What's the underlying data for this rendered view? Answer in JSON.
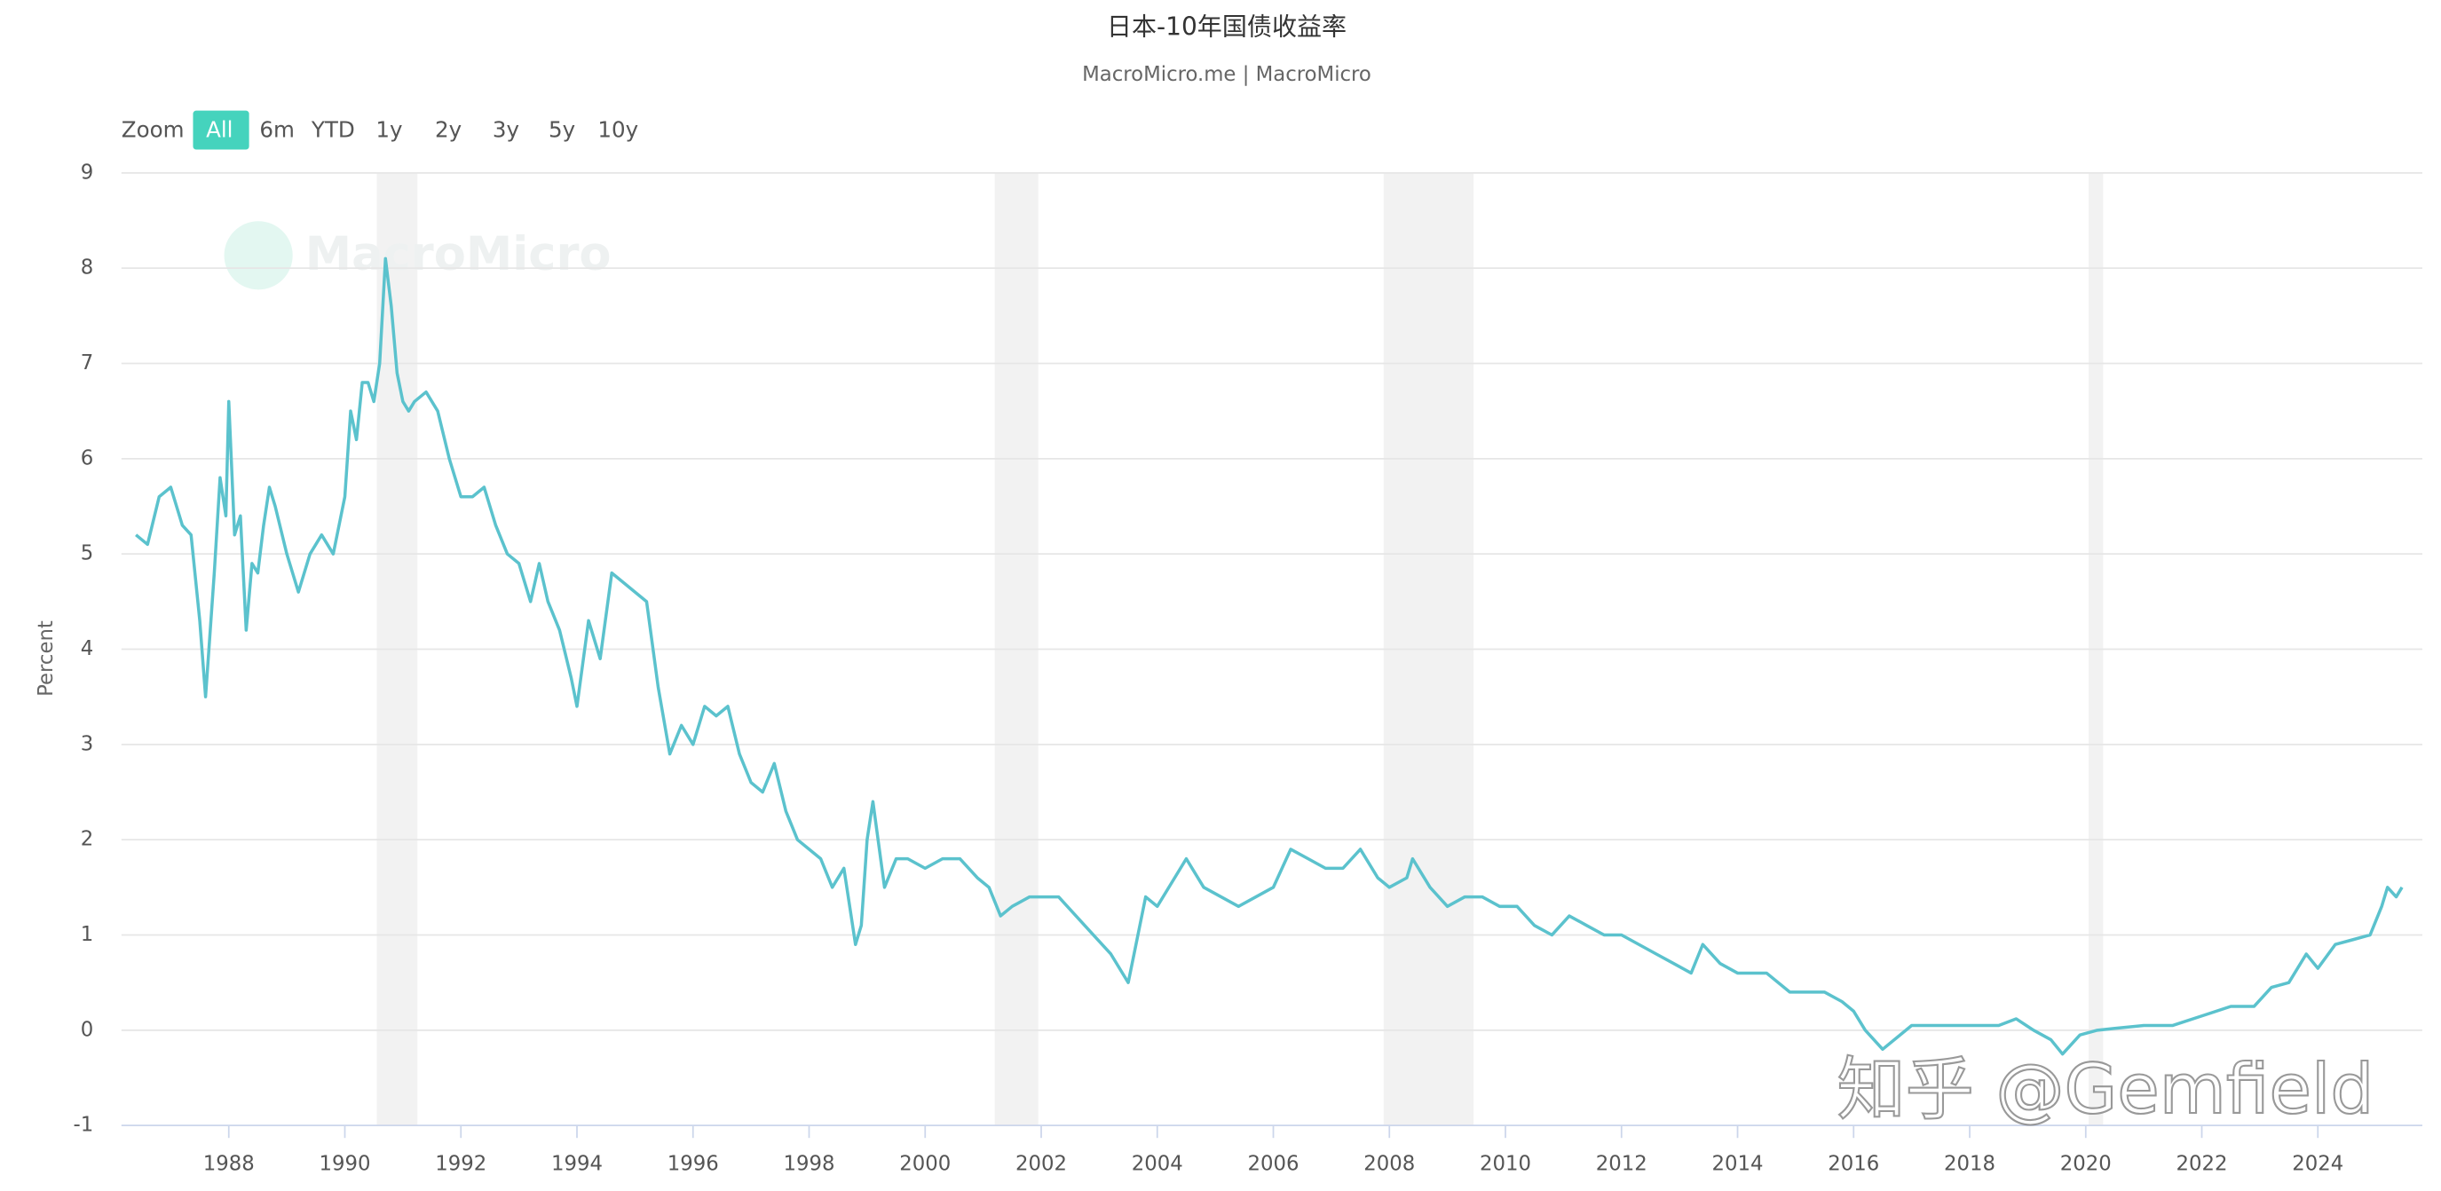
{
  "chart_data": {
    "type": "line",
    "title": "日本-10年国债收益率",
    "subtitle": "MacroMicro.me | MacroMicro",
    "zoom_label": "Zoom",
    "zoom_buttons": [
      "All",
      "6m",
      "YTD",
      "1y",
      "2y",
      "3y",
      "5y",
      "10y"
    ],
    "active_zoom": "All",
    "y_label": "Percent",
    "watermarks": [
      "MacroMicro",
      "知乎 @Gemfield"
    ],
    "xlim": [
      1986.15,
      2025.8
    ],
    "xticks": [
      1988,
      1990,
      1992,
      1994,
      1996,
      1998,
      2000,
      2002,
      2004,
      2006,
      2008,
      2010,
      2012,
      2014,
      2016,
      2018,
      2020,
      2022,
      2024
    ],
    "ylim": [
      -1,
      9
    ],
    "yticks": [
      -1,
      0,
      1,
      2,
      3,
      4,
      5,
      6,
      7,
      8,
      9
    ],
    "grid": true,
    "band_color": "#f2f2f2",
    "recession_bands": [
      [
        1990.55,
        1991.25
      ],
      [
        2001.2,
        2001.95
      ],
      [
        2007.9,
        2009.45
      ],
      [
        2020.05,
        2020.3
      ]
    ],
    "x": [
      1986.4,
      1986.6,
      1986.8,
      1987.0,
      1987.2,
      1987.35,
      1987.5,
      1987.6,
      1987.75,
      1987.85,
      1987.95,
      1988.0,
      1988.1,
      1988.2,
      1988.3,
      1988.4,
      1988.5,
      1988.6,
      1988.7,
      1988.8,
      1989.0,
      1989.2,
      1989.4,
      1989.6,
      1989.8,
      1990.0,
      1990.1,
      1990.2,
      1990.3,
      1990.4,
      1990.5,
      1990.6,
      1990.7,
      1990.8,
      1990.9,
      1991.0,
      1991.1,
      1991.2,
      1991.4,
      1991.6,
      1991.8,
      1992.0,
      1992.2,
      1992.4,
      1992.6,
      1992.8,
      1993.0,
      1993.2,
      1993.35,
      1993.5,
      1993.7,
      1993.9,
      1994.0,
      1994.2,
      1994.4,
      1994.6,
      1994.8,
      1995.0,
      1995.2,
      1995.4,
      1995.6,
      1995.8,
      1996.0,
      1996.2,
      1996.4,
      1996.6,
      1996.8,
      1997.0,
      1997.2,
      1997.4,
      1997.6,
      1997.8,
      1998.0,
      1998.2,
      1998.4,
      1998.6,
      1998.8,
      1998.9,
      1999.0,
      1999.1,
      1999.3,
      1999.5,
      1999.7,
      2000.0,
      2000.3,
      2000.6,
      2000.9,
      2001.1,
      2001.3,
      2001.5,
      2001.8,
      2002.0,
      2002.3,
      2002.6,
      2002.9,
      2003.2,
      2003.5,
      2003.6,
      2003.8,
      2004.0,
      2004.3,
      2004.5,
      2004.8,
      2005.1,
      2005.4,
      2005.7,
      2006.0,
      2006.3,
      2006.6,
      2006.9,
      2007.2,
      2007.5,
      2007.8,
      2008.0,
      2008.3,
      2008.4,
      2008.7,
      2009.0,
      2009.3,
      2009.6,
      2009.9,
      2010.2,
      2010.5,
      2010.8,
      2011.1,
      2011.4,
      2011.7,
      2012.0,
      2012.3,
      2012.6,
      2012.9,
      2013.2,
      2013.4,
      2013.7,
      2014.0,
      2014.5,
      2014.9,
      2015.2,
      2015.5,
      2015.8,
      2016.0,
      2016.2,
      2016.5,
      2016.8,
      2017.0,
      2017.5,
      2018.0,
      2018.5,
      2018.8,
      2019.1,
      2019.4,
      2019.6,
      2019.9,
      2020.2,
      2020.5,
      2021.0,
      2021.5,
      2022.0,
      2022.5,
      2022.9,
      2023.2,
      2023.5,
      2023.8,
      2024.0,
      2024.3,
      2024.6,
      2024.9,
      2025.1,
      2025.2,
      2025.35,
      2025.45
    ],
    "series": [
      {
        "name": "日本-10年国债收益率",
        "color": "#5bc2cd",
        "values": [
          5.2,
          5.1,
          5.6,
          5.7,
          5.3,
          5.2,
          4.3,
          3.5,
          4.8,
          5.8,
          5.4,
          6.6,
          5.2,
          5.4,
          4.2,
          4.9,
          4.8,
          5.3,
          5.7,
          5.5,
          5.0,
          4.6,
          5.0,
          5.2,
          5.0,
          5.6,
          6.5,
          6.2,
          6.8,
          6.8,
          6.6,
          7.0,
          8.1,
          7.6,
          6.9,
          6.6,
          6.5,
          6.6,
          6.7,
          6.5,
          6.0,
          5.6,
          5.6,
          5.7,
          5.3,
          5.0,
          4.9,
          4.5,
          4.9,
          4.5,
          4.2,
          3.7,
          3.4,
          4.3,
          3.9,
          4.8,
          4.7,
          4.6,
          4.5,
          3.6,
          2.9,
          3.2,
          3.0,
          3.4,
          3.3,
          3.4,
          2.9,
          2.6,
          2.5,
          2.8,
          2.3,
          2.0,
          1.9,
          1.8,
          1.5,
          1.7,
          0.9,
          1.1,
          2.0,
          2.4,
          1.5,
          1.8,
          1.8,
          1.7,
          1.8,
          1.8,
          1.6,
          1.5,
          1.2,
          1.3,
          1.4,
          1.4,
          1.4,
          1.2,
          1.0,
          0.8,
          0.5,
          0.8,
          1.4,
          1.3,
          1.6,
          1.8,
          1.5,
          1.4,
          1.3,
          1.4,
          1.5,
          1.9,
          1.8,
          1.7,
          1.7,
          1.9,
          1.6,
          1.5,
          1.6,
          1.8,
          1.5,
          1.3,
          1.4,
          1.4,
          1.3,
          1.3,
          1.1,
          1.0,
          1.2,
          1.1,
          1.0,
          1.0,
          0.9,
          0.8,
          0.7,
          0.6,
          0.9,
          0.7,
          0.6,
          0.6,
          0.4,
          0.4,
          0.4,
          0.3,
          0.2,
          0.0,
          -0.2,
          -0.05,
          0.05,
          0.05,
          0.05,
          0.05,
          0.12,
          0.0,
          -0.1,
          -0.25,
          -0.05,
          0.0,
          0.02,
          0.05,
          0.05,
          0.15,
          0.25,
          0.25,
          0.45,
          0.5,
          0.8,
          0.65,
          0.9,
          0.95,
          1.0,
          1.3,
          1.5,
          1.4,
          1.5
        ]
      }
    ]
  }
}
